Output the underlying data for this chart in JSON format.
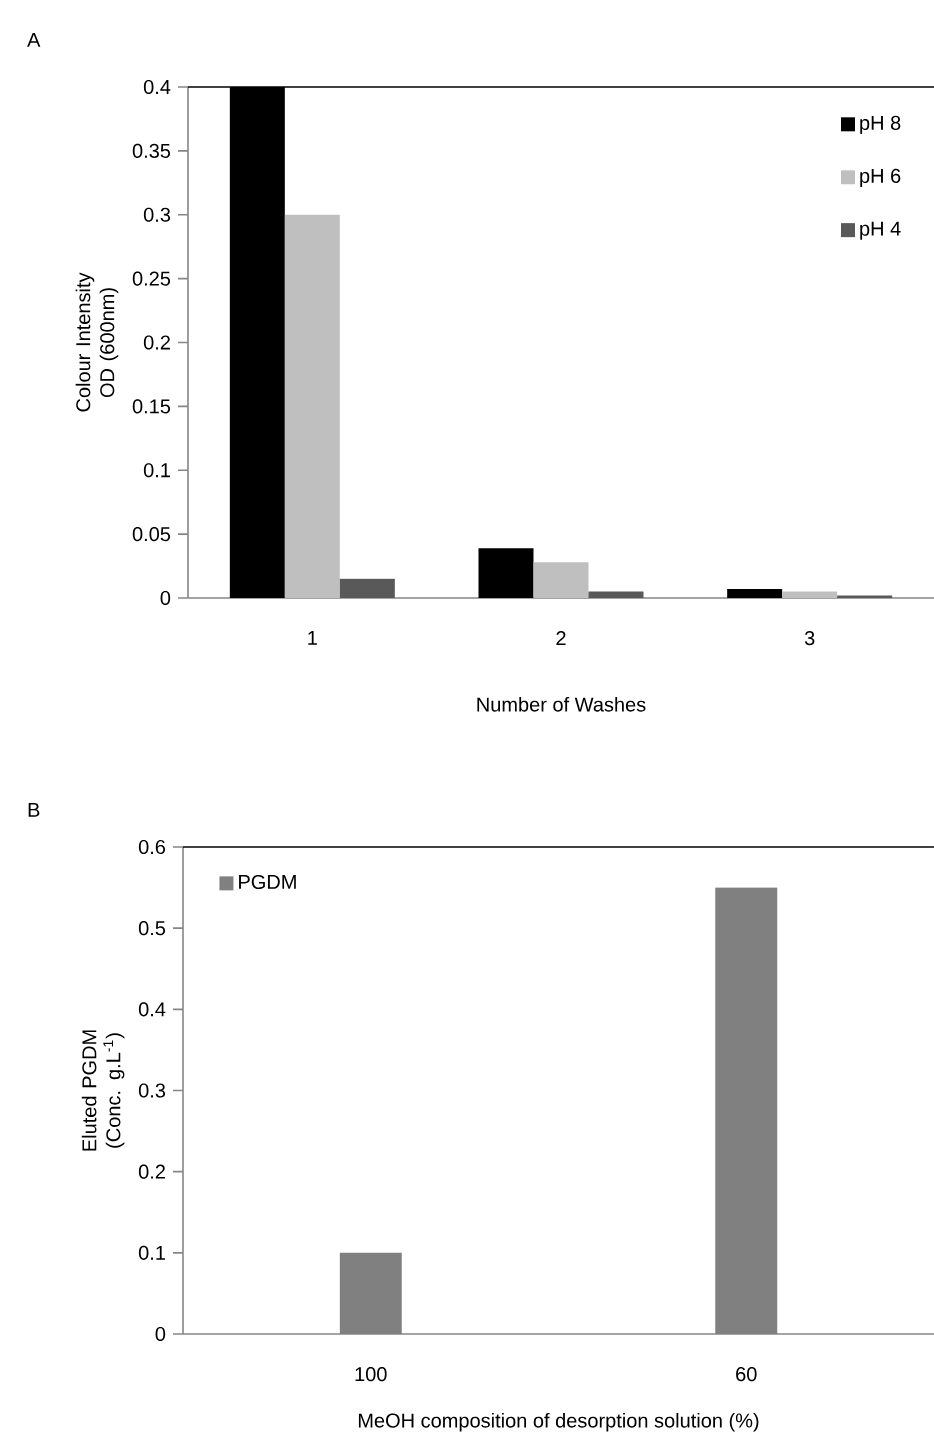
{
  "chart_data": [
    {
      "type": "bar",
      "annotations": [
        "A"
      ],
      "xlabel": "Number of Washes",
      "ylabel": "Colour Intensity OD (600nm)",
      "categories": [
        "1",
        "2",
        "3"
      ],
      "series": [
        {
          "name": "pH 8",
          "color": "#000000",
          "values": [
            0.4,
            0.039,
            0.007
          ]
        },
        {
          "name": "pH 6",
          "color": "#bfbfbf",
          "values": [
            0.3,
            0.028,
            0.005
          ]
        },
        {
          "name": "pH 4",
          "color": "#595959",
          "values": [
            0.015,
            0.005,
            0.002
          ]
        }
      ],
      "ylim": [
        0,
        0.4
      ],
      "yticks": [
        0,
        0.05,
        0.1,
        0.15,
        0.2,
        0.25,
        0.3,
        0.35,
        0.4
      ],
      "legend": "top right"
    },
    {
      "type": "bar",
      "annotations": [
        "B"
      ],
      "xlabel": "MeOH composition of desorption solution (%)",
      "ylabel": "Eluted PGDM (Conc. g.L$^{-1}$)",
      "categories": [
        "100",
        "60"
      ],
      "series": [
        {
          "name": "PGDM",
          "color": "#808080",
          "values": [
            0.1,
            0.55
          ]
        }
      ],
      "ylim": [
        0,
        0.6
      ],
      "yticks": [
        0,
        0.1,
        0.2,
        0.3,
        0.4,
        0.5,
        0.6
      ],
      "legend": "top left"
    }
  ]
}
